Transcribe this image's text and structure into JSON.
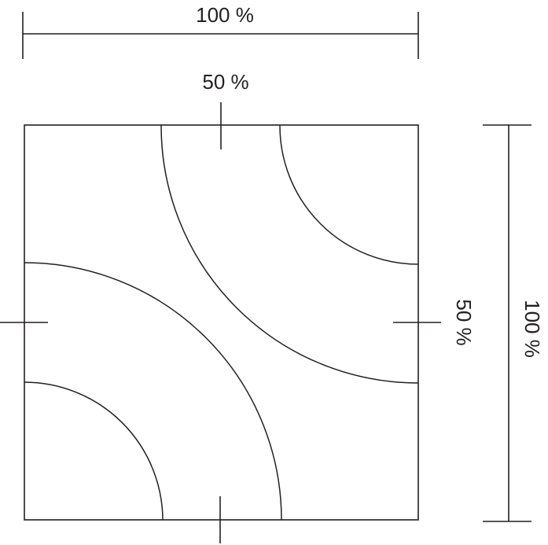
{
  "labels": {
    "top_width": "100 %",
    "top_half": "50 %",
    "right_half": "50 %",
    "right_height": "100 %"
  }
}
